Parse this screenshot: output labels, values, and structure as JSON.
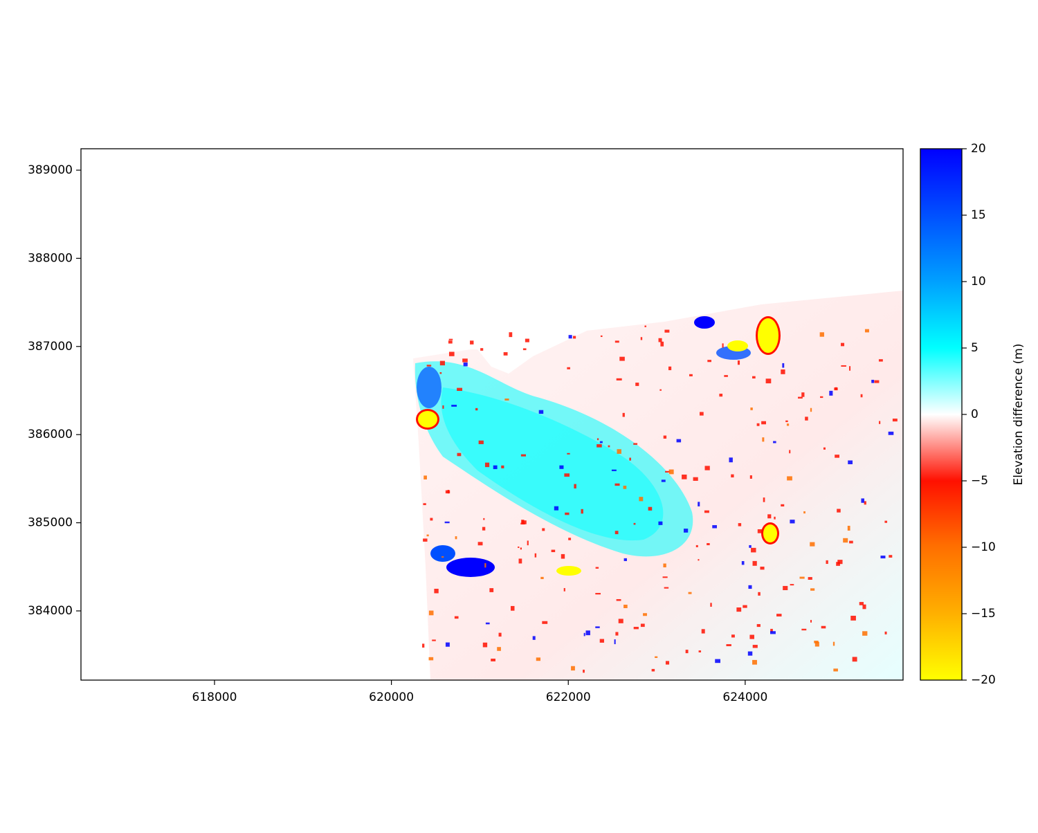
{
  "chart_data": {
    "type": "raster",
    "xlim": [
      616490,
      625785
    ],
    "ylim": [
      383215,
      389243
    ],
    "xticks": [
      618000,
      620000,
      622000,
      624000
    ],
    "yticks": [
      384000,
      385000,
      386000,
      387000,
      388000,
      389000
    ],
    "colorbar": {
      "label": "Elevation difference (m)",
      "lim": [
        -20,
        20
      ],
      "ticks": [
        {
          "value": -20,
          "label": "−20"
        },
        {
          "value": -15,
          "label": "−15"
        },
        {
          "value": -10,
          "label": "−10"
        },
        {
          "value": -5,
          "label": "−5"
        },
        0,
        5,
        10,
        15,
        20
      ],
      "colormap": [
        "#ffff00",
        "#ffb000",
        "#ff7000",
        "#ff1000",
        "#ffffff",
        "#00ffff",
        "#00a0ff",
        "#0050ff",
        "#0000ff"
      ]
    }
  }
}
